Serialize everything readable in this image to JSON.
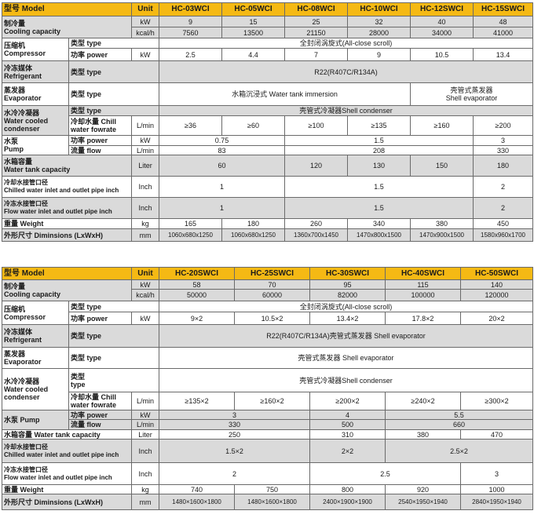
{
  "colors": {
    "header": "#f5b914",
    "gray_row": "#dadada",
    "border": "#6a6a6a"
  },
  "tables": [
    {
      "rows": [
        {
          "bg": "h",
          "cells": [
            {
              "t": "型号 Model",
              "cs": 2,
              "c": "lbl"
            },
            {
              "t": "Unit"
            },
            {
              "t": "HC-03WCI"
            },
            {
              "t": "HC-05WCI"
            },
            {
              "t": "HC-08WCI"
            },
            {
              "t": "HC-10WCI"
            },
            {
              "t": "HC-12SWCI"
            },
            {
              "t": "HC-15SWCI"
            }
          ]
        },
        {
          "bg": "g",
          "cells": [
            {
              "t": "制冷量\nCooling capacity",
              "cs": 2,
              "rs": 2,
              "c": "lbl"
            },
            {
              "t": "kW"
            },
            {
              "t": "9"
            },
            {
              "t": "15"
            },
            {
              "t": "25"
            },
            {
              "t": "32"
            },
            {
              "t": "40"
            },
            {
              "t": "48"
            }
          ]
        },
        {
          "bg": "g",
          "cells": [
            {
              "t": "kcal/h"
            },
            {
              "t": "7560"
            },
            {
              "t": "13500"
            },
            {
              "t": "21150"
            },
            {
              "t": "28000"
            },
            {
              "t": "34000"
            },
            {
              "t": "41000"
            }
          ]
        },
        {
          "bg": "w",
          "cells": [
            {
              "t": "压缩机\nCompressor",
              "rs": 2,
              "c": "lbl"
            },
            {
              "t": "类型 type",
              "cs": 2,
              "c": "lbl"
            },
            {
              "t": "全封闭涡旋式(All-close scroll)",
              "cs": 6
            }
          ]
        },
        {
          "bg": "w",
          "cells": [
            {
              "t": "功率 power",
              "c": "lbl"
            },
            {
              "t": "kW"
            },
            {
              "t": "2.5"
            },
            {
              "t": "4.4"
            },
            {
              "t": "7"
            },
            {
              "t": "9"
            },
            {
              "t": "10.5"
            },
            {
              "t": "13.4"
            }
          ]
        },
        {
          "bg": "g",
          "cells": [
            {
              "t": "冷冻媒体\nRefrigerant",
              "c": "lbl"
            },
            {
              "t": "类型 type",
              "cs": 2,
              "c": "lbl"
            },
            {
              "t": "R22(R407C/R134A)",
              "cs": 6
            }
          ]
        },
        {
          "bg": "w",
          "cells": [
            {
              "t": "蒸发器\nEvaporator",
              "c": "lbl"
            },
            {
              "t": "类型 type",
              "cs": 2,
              "c": "lbl"
            },
            {
              "t": "水箱沉浸式 Water tank immersion",
              "cs": 4
            },
            {
              "t": "壳管式蒸发器\nShell evaporator",
              "cs": 2
            }
          ]
        },
        {
          "bg": "g",
          "cells": [
            {
              "t": "水冷冷凝器\nWater cooled\ncondenser",
              "rs": 2,
              "c": "lbl"
            },
            {
              "t": "类型 type",
              "cs": 2,
              "c": "lbl"
            },
            {
              "t": "壳管式冷凝器Shell condenser",
              "cs": 6
            }
          ]
        },
        {
          "bg": "w",
          "cells": [
            {
              "t": "冷却水量 Chill\nwater fowrate",
              "c": "lbl"
            },
            {
              "t": "L/min"
            },
            {
              "t": "≥36"
            },
            {
              "t": "≥60"
            },
            {
              "t": "≥100"
            },
            {
              "t": "≥135"
            },
            {
              "t": "≥160"
            },
            {
              "t": "≥200"
            }
          ]
        },
        {
          "bg": "w",
          "cells": [
            {
              "t": "水泵\nPump",
              "rs": 2,
              "c": "lbl"
            },
            {
              "t": "功率 power",
              "c": "lbl"
            },
            {
              "t": "kW"
            },
            {
              "t": "0.75",
              "cs": 2
            },
            {
              "t": "1.5",
              "cs": 3
            },
            {
              "t": "3"
            }
          ]
        },
        {
          "bg": "w",
          "cells": [
            {
              "t": "流量 flow",
              "c": "lbl"
            },
            {
              "t": "L/min"
            },
            {
              "t": "83",
              "cs": 2
            },
            {
              "t": "208",
              "cs": 3
            },
            {
              "t": "330"
            }
          ]
        },
        {
          "bg": "g",
          "cells": [
            {
              "t": "水箱容量\nWater tank capacity",
              "cs": 2,
              "c": "lbl"
            },
            {
              "t": "Liter"
            },
            {
              "t": "60",
              "cs": 2
            },
            {
              "t": "120"
            },
            {
              "t": "130"
            },
            {
              "t": "150"
            },
            {
              "t": "180"
            }
          ]
        },
        {
          "bg": "w",
          "cells": [
            {
              "t": "冷却水接管口径\nChilled water inlet and outlet pipe inch",
              "cs": 2,
              "c": "lbl small"
            },
            {
              "t": "Inch"
            },
            {
              "t": "1",
              "cs": 2
            },
            {
              "t": "1.5",
              "cs": 3
            },
            {
              "t": "2"
            }
          ]
        },
        {
          "bg": "g",
          "cells": [
            {
              "t": "冷冻水接管口径\nFlow water inlet and outlet pipe inch",
              "cs": 2,
              "c": "lbl small"
            },
            {
              "t": "Inch"
            },
            {
              "t": "1",
              "cs": 2
            },
            {
              "t": "1.5",
              "cs": 3
            },
            {
              "t": "2"
            }
          ]
        },
        {
          "bg": "w",
          "cells": [
            {
              "t": "重量 Weight",
              "cs": 2,
              "c": "lbl"
            },
            {
              "t": "kg"
            },
            {
              "t": "165"
            },
            {
              "t": "180"
            },
            {
              "t": "260"
            },
            {
              "t": "340"
            },
            {
              "t": "380"
            },
            {
              "t": "450"
            }
          ]
        },
        {
          "bg": "g",
          "cells": [
            {
              "t": "外形尺寸 Diminsions (LxWxH)",
              "cs": 2,
              "c": "lbl"
            },
            {
              "t": "mm"
            },
            {
              "t": "1060x680x1250",
              "c": "small"
            },
            {
              "t": "1060x680x1250",
              "c": "small"
            },
            {
              "t": "1360x700x1450",
              "c": "small"
            },
            {
              "t": "1470x800x1500",
              "c": "small"
            },
            {
              "t": "1470x900x1500",
              "c": "small"
            },
            {
              "t": "1580x960x1700",
              "c": "small"
            }
          ]
        }
      ]
    },
    {
      "rows": [
        {
          "bg": "h",
          "cells": [
            {
              "t": "型号 Model",
              "cs": 2,
              "c": "lbl"
            },
            {
              "t": "Unit"
            },
            {
              "t": "HC-20SWCI"
            },
            {
              "t": "HC-25SWCI"
            },
            {
              "t": "HC-30SWCI"
            },
            {
              "t": "HC-40SWCI"
            },
            {
              "t": "HC-50SWCI"
            }
          ]
        },
        {
          "bg": "g",
          "cells": [
            {
              "t": "制冷量\nCooling capacity",
              "cs": 2,
              "rs": 2,
              "c": "lbl"
            },
            {
              "t": "kW"
            },
            {
              "t": "58"
            },
            {
              "t": "70"
            },
            {
              "t": "95"
            },
            {
              "t": "115"
            },
            {
              "t": "140"
            }
          ]
        },
        {
          "bg": "g",
          "cells": [
            {
              "t": "kcal/h"
            },
            {
              "t": "50000"
            },
            {
              "t": "60000"
            },
            {
              "t": "82000"
            },
            {
              "t": "100000"
            },
            {
              "t": "120000"
            }
          ]
        },
        {
          "bg": "w",
          "cells": [
            {
              "t": "压缩机\nCompressor",
              "rs": 2,
              "c": "lbl"
            },
            {
              "t": "类型 type",
              "cs": 2,
              "c": "lbl"
            },
            {
              "t": "全封闭涡旋式(All-close scroll)",
              "cs": 5
            }
          ]
        },
        {
          "bg": "w",
          "cells": [
            {
              "t": "功率 power",
              "c": "lbl"
            },
            {
              "t": "kW"
            },
            {
              "t": "9×2"
            },
            {
              "t": "10.5×2"
            },
            {
              "t": "13.4×2"
            },
            {
              "t": "17.8×2"
            },
            {
              "t": "20×2"
            }
          ]
        },
        {
          "bg": "g",
          "cells": [
            {
              "t": "冷冻媒体\nRefrigerant",
              "c": "lbl"
            },
            {
              "t": "类型 type",
              "cs": 2,
              "c": "lbl"
            },
            {
              "t": "R22(R407C/R134A)壳管式蒸发器 Shell evaporator",
              "cs": 5
            }
          ]
        },
        {
          "bg": "w",
          "cells": [
            {
              "t": "蒸发器\nEvaporator",
              "c": "lbl"
            },
            {
              "t": "类型 type",
              "cs": 2,
              "c": "lbl"
            },
            {
              "t": "壳管式蒸发器 Shell evaporator",
              "cs": 5
            }
          ]
        },
        {
          "bg": "w",
          "cells": [
            {
              "t": "水冷冷凝器\nWater cooled\ncondenser",
              "rs": 2,
              "c": "lbl"
            },
            {
              "t": "类型\ntype",
              "cs": 2,
              "c": "lbl"
            },
            {
              "t": "壳管式冷凝器Shell condenser",
              "cs": 5
            }
          ]
        },
        {
          "bg": "w",
          "cells": [
            {
              "t": "冷却水量 Chill\nwater fowrate",
              "c": "lbl"
            },
            {
              "t": "L/min"
            },
            {
              "t": "≥135×2"
            },
            {
              "t": "≥160×2"
            },
            {
              "t": "≥200×2"
            },
            {
              "t": "≥240×2"
            },
            {
              "t": "≥300×2"
            }
          ]
        },
        {
          "bg": "g",
          "cells": [
            {
              "t": "水泵 Pump",
              "rs": 2,
              "c": "lbl"
            },
            {
              "t": "功率 power",
              "c": "lbl"
            },
            {
              "t": "kW"
            },
            {
              "t": "3",
              "cs": 2
            },
            {
              "t": "4"
            },
            {
              "t": "5.5",
              "cs": 2
            }
          ]
        },
        {
          "bg": "g",
          "cells": [
            {
              "t": "流量 flow",
              "c": "lbl"
            },
            {
              "t": "L/min"
            },
            {
              "t": "330",
              "cs": 2
            },
            {
              "t": "500"
            },
            {
              "t": "660",
              "cs": 2
            }
          ]
        },
        {
          "bg": "w",
          "cells": [
            {
              "t": "水箱容量 Water tank capacity",
              "cs": 2,
              "c": "lbl"
            },
            {
              "t": "Liter"
            },
            {
              "t": "250",
              "cs": 2
            },
            {
              "t": "310"
            },
            {
              "t": "380"
            },
            {
              "t": "470"
            }
          ]
        },
        {
          "bg": "g",
          "cells": [
            {
              "t": "冷却水接管口径\nChilled water inlet and outlet pipe inch",
              "cs": 2,
              "c": "lbl small"
            },
            {
              "t": "Inch"
            },
            {
              "t": "1.5×2",
              "cs": 2
            },
            {
              "t": "2×2"
            },
            {
              "t": "2.5×2",
              "cs": 2
            }
          ]
        },
        {
          "bg": "w",
          "cells": [
            {
              "t": "冷冻水接管口径\nFlow water inlet and outlet pipe inch",
              "cs": 2,
              "c": "lbl small"
            },
            {
              "t": "Inch"
            },
            {
              "t": "2",
              "cs": 2
            },
            {
              "t": "2.5",
              "cs": 2
            },
            {
              "t": "3"
            }
          ]
        },
        {
          "bg": "w",
          "cells": [
            {
              "t": "重量 Weight",
              "cs": 2,
              "c": "lbl"
            },
            {
              "t": "kg"
            },
            {
              "t": "740"
            },
            {
              "t": "750"
            },
            {
              "t": "800"
            },
            {
              "t": "920"
            },
            {
              "t": "1000"
            }
          ]
        },
        {
          "bg": "g",
          "cells": [
            {
              "t": "外形尺寸 Diminsions (LxWxH)",
              "cs": 2,
              "c": "lbl"
            },
            {
              "t": "mm"
            },
            {
              "t": "1480×1600×1800",
              "c": "small"
            },
            {
              "t": "1480×1600×1800",
              "c": "small"
            },
            {
              "t": "2400×1900×1900",
              "c": "small"
            },
            {
              "t": "2540×1950×1940",
              "c": "small"
            },
            {
              "t": "2840×1950×1940",
              "c": "small"
            }
          ]
        }
      ]
    }
  ]
}
